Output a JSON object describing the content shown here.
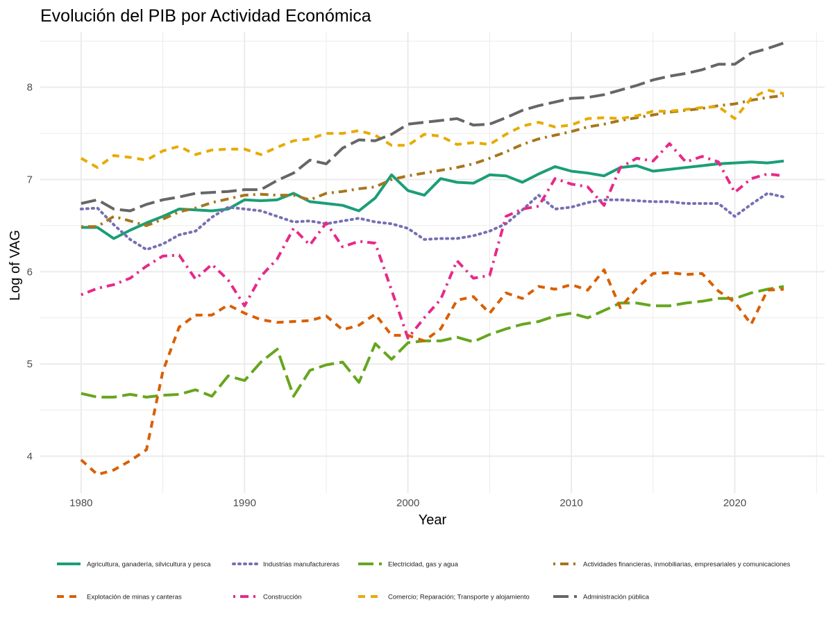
{
  "chart_data": {
    "type": "line",
    "title": "Evolución del PIB por Actividad Económica",
    "xlabel": "Year",
    "ylabel": "Log of VAG",
    "xlim": [
      1977.5,
      2025.5
    ],
    "ylim": [
      3.6,
      8.6
    ],
    "x_ticks": [
      1980,
      1990,
      2000,
      2010,
      2020
    ],
    "y_ticks": [
      4,
      5,
      6,
      7,
      8
    ],
    "grid": true,
    "legend_position": "bottom",
    "x": [
      1980,
      1981,
      1982,
      1983,
      1984,
      1985,
      1986,
      1987,
      1988,
      1989,
      1990,
      1991,
      1992,
      1993,
      1994,
      1995,
      1996,
      1997,
      1998,
      1999,
      2000,
      2001,
      2002,
      2003,
      2004,
      2005,
      2006,
      2007,
      2008,
      2009,
      2010,
      2011,
      2012,
      2013,
      2014,
      2015,
      2016,
      2017,
      2018,
      2019,
      2020,
      2021,
      2022,
      2023
    ],
    "series": [
      {
        "name": "Agricultura, ganadería, silvicultura y pesca",
        "color": "#1b9e77",
        "dash": "solid",
        "values": [
          6.48,
          6.48,
          6.36,
          6.45,
          6.53,
          6.6,
          6.68,
          6.67,
          6.66,
          6.68,
          6.78,
          6.77,
          6.78,
          6.85,
          6.76,
          6.74,
          6.72,
          6.66,
          6.8,
          7.05,
          6.88,
          6.83,
          7.01,
          6.97,
          6.96,
          7.05,
          7.04,
          6.97,
          7.06,
          7.14,
          7.09,
          7.07,
          7.04,
          7.13,
          7.15,
          7.09,
          7.11,
          7.13,
          7.15,
          7.17,
          7.18,
          7.19,
          7.18,
          7.2
        ]
      },
      {
        "name": "Industrias manufactureras",
        "color": "#7570b3",
        "dash": "dotted",
        "values": [
          6.68,
          6.69,
          6.51,
          6.35,
          6.24,
          6.3,
          6.4,
          6.44,
          6.59,
          6.7,
          6.68,
          6.66,
          6.6,
          6.54,
          6.55,
          6.52,
          6.55,
          6.58,
          6.54,
          6.52,
          6.47,
          6.35,
          6.36,
          6.36,
          6.39,
          6.44,
          6.52,
          6.67,
          6.83,
          6.68,
          6.7,
          6.75,
          6.78,
          6.78,
          6.77,
          6.76,
          6.76,
          6.74,
          6.74,
          6.74,
          6.6,
          6.73,
          6.85,
          6.81
        ]
      },
      {
        "name": "Electricidad, gas y agua",
        "color": "#66a61e",
        "dash": "longdash",
        "values": [
          4.68,
          4.64,
          4.64,
          4.67,
          4.64,
          4.66,
          4.67,
          4.72,
          4.65,
          4.87,
          4.82,
          5.02,
          5.16,
          4.65,
          4.93,
          4.99,
          5.02,
          4.8,
          5.22,
          5.05,
          5.23,
          5.25,
          5.25,
          5.29,
          5.24,
          5.32,
          5.38,
          5.43,
          5.46,
          5.52,
          5.55,
          5.5,
          5.58,
          5.66,
          5.66,
          5.63,
          5.63,
          5.66,
          5.68,
          5.71,
          5.71,
          5.77,
          5.81,
          5.84
        ]
      },
      {
        "name": "Actividades financieras, inmobiliarias, empresariales y comunicaciones",
        "color": "#a6761d",
        "dash": "dotdash",
        "values": [
          6.49,
          6.49,
          6.6,
          6.55,
          6.5,
          6.57,
          6.65,
          6.69,
          6.75,
          6.79,
          6.83,
          6.84,
          6.83,
          6.83,
          6.78,
          6.85,
          6.87,
          6.9,
          6.92,
          7.0,
          7.04,
          7.07,
          7.1,
          7.13,
          7.17,
          7.23,
          7.3,
          7.38,
          7.44,
          7.48,
          7.52,
          7.57,
          7.6,
          7.64,
          7.67,
          7.7,
          7.73,
          7.75,
          7.77,
          7.8,
          7.82,
          7.86,
          7.89,
          7.91
        ]
      },
      {
        "name": "Explotación de minas y canteras",
        "color": "#d95f02",
        "dash": "dashed",
        "values": [
          3.96,
          3.8,
          3.85,
          3.95,
          4.07,
          4.92,
          5.4,
          5.53,
          5.53,
          5.64,
          5.55,
          5.48,
          5.45,
          5.46,
          5.47,
          5.52,
          5.37,
          5.42,
          5.54,
          5.31,
          5.31,
          5.25,
          5.38,
          5.69,
          5.73,
          5.55,
          5.77,
          5.71,
          5.84,
          5.81,
          5.86,
          5.8,
          6.02,
          5.61,
          5.82,
          5.98,
          5.99,
          5.97,
          5.98,
          5.79,
          5.67,
          5.43,
          5.8,
          5.81
        ]
      },
      {
        "name": "Construcción",
        "color": "#e7298a",
        "dash": "dotdash",
        "values": [
          5.75,
          5.82,
          5.86,
          5.93,
          6.06,
          6.17,
          6.18,
          5.92,
          6.08,
          5.91,
          5.63,
          5.95,
          6.14,
          6.47,
          6.29,
          6.53,
          6.27,
          6.33,
          6.31,
          5.8,
          5.28,
          5.5,
          5.7,
          6.12,
          5.93,
          5.96,
          6.6,
          6.68,
          6.71,
          7.01,
          6.95,
          6.92,
          6.72,
          7.13,
          7.23,
          7.2,
          7.39,
          7.19,
          7.25,
          7.19,
          6.86,
          7.01,
          7.06,
          7.04
        ]
      },
      {
        "name": "Comercio; Reparación; Transporte y alojamiento",
        "color": "#e6ab02",
        "dash": "dashed",
        "values": [
          7.23,
          7.13,
          7.26,
          7.24,
          7.21,
          7.31,
          7.36,
          7.27,
          7.32,
          7.33,
          7.33,
          7.27,
          7.35,
          7.42,
          7.44,
          7.5,
          7.5,
          7.53,
          7.48,
          7.37,
          7.37,
          7.49,
          7.47,
          7.38,
          7.4,
          7.38,
          7.49,
          7.58,
          7.62,
          7.57,
          7.59,
          7.66,
          7.67,
          7.66,
          7.69,
          7.74,
          7.74,
          7.76,
          7.78,
          7.79,
          7.66,
          7.88,
          7.97,
          7.93
        ]
      },
      {
        "name": "Administración pública",
        "color": "#666666",
        "dash": "longdash",
        "values": [
          6.74,
          6.78,
          6.68,
          6.66,
          6.73,
          6.78,
          6.81,
          6.85,
          6.86,
          6.87,
          6.89,
          6.89,
          6.99,
          7.07,
          7.21,
          7.17,
          7.34,
          7.43,
          7.42,
          7.49,
          7.6,
          7.62,
          7.64,
          7.66,
          7.59,
          7.6,
          7.67,
          7.75,
          7.8,
          7.84,
          7.88,
          7.89,
          7.92,
          7.97,
          8.02,
          8.08,
          8.12,
          8.15,
          8.19,
          8.25,
          8.25,
          8.37,
          8.42,
          8.48
        ]
      }
    ]
  }
}
